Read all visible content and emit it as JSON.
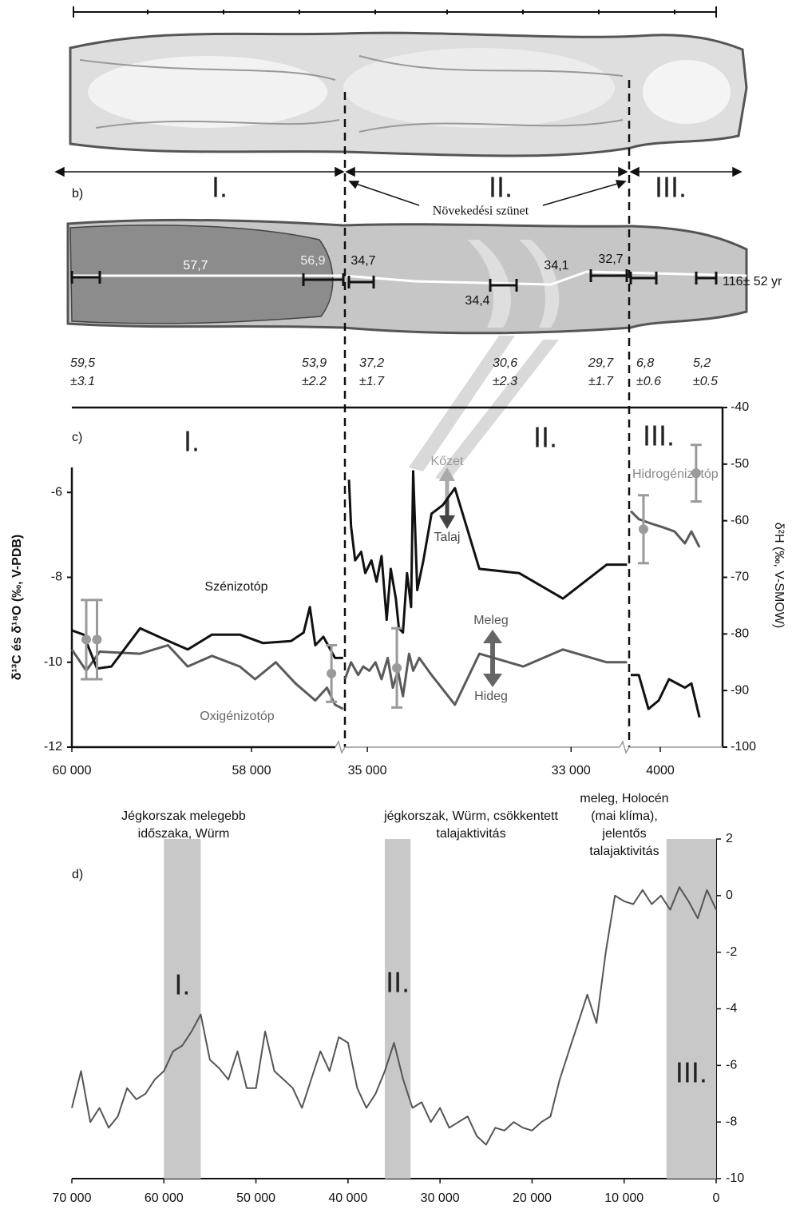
{
  "panel_a": {
    "zones": [
      "I.",
      "II.",
      "III."
    ]
  },
  "panel_b": {
    "label": "b)",
    "note": "Növekedési szünet",
    "samples": [
      "57,7",
      "56,9",
      "34,7",
      "34,1",
      "32,7",
      "34,4"
    ],
    "sample_note": "116± 52 yr",
    "ages": [
      {
        "age": "59,5",
        "error": "±3.1"
      },
      {
        "age": "53,9",
        "error": "±2.2"
      },
      {
        "age": "37,2",
        "error": "±1.7"
      },
      {
        "age": "30,6",
        "error": "±2.3"
      },
      {
        "age": "29,7",
        "error": "±1.7"
      },
      {
        "age": "6,8",
        "error": "±0.6"
      },
      {
        "age": "5,2",
        "error": "±0.5"
      }
    ]
  },
  "chart_data": [
    {
      "type": "line",
      "label": "c)",
      "ylabel": "δ¹³C és δ¹⁸O (‰, V-PDB)",
      "y2label": "δ²H (‰, V-SMOW)",
      "ylim": [
        -12,
        -4
      ],
      "yticks": [
        -12,
        -10,
        -8,
        -6
      ],
      "y2lim": [
        -100,
        -40
      ],
      "y2ticks": [
        -100,
        -90,
        -80,
        -70,
        -60,
        -50,
        -40
      ],
      "zones": [
        "I.",
        "II.",
        "III."
      ],
      "colors": {
        "carbon": "#111111",
        "oxygen": "#5a5a5a",
        "hydrogen": "#9a9a9a"
      },
      "annotations": {
        "carbon": "Szénizotóp",
        "oxygen": "Oxigénizotóp",
        "rock": "Kőzet",
        "soil": "Talaj",
        "warm": "Meleg",
        "cold": "Hideg",
        "hydrogen": "Hidrogénizotóp"
      },
      "descriptions": [
        [
          "Jégkorszak melegebb",
          "időszaka, Würm"
        ],
        [
          "jégkorszak, Würm, csökkentett",
          "talajaktivitás"
        ],
        [
          "meleg, Holocén",
          "(mai klíma),",
          "jelentős",
          "talajaktivitás"
        ]
      ],
      "segments": [
        {
          "xlim": [
            60000,
            56960
          ],
          "xticks": [
            {
              "value": 60000,
              "label": "60 000"
            },
            {
              "value": 58000,
              "label": "58 000"
            }
          ],
          "carbon": {
            "x": [
              60000,
              59870,
              59720,
              59560,
              59240,
              58980,
              58710,
              58440,
              58130,
              57870,
              57560,
              57420,
              57350,
              57290,
              57200,
              57070,
              56980
            ],
            "values": [
              -9.25,
              -9.35,
              -10.15,
              -10.1,
              -9.2,
              -9.45,
              -9.7,
              -9.35,
              -9.35,
              -9.55,
              -9.5,
              -9.3,
              -8.7,
              -9.6,
              -9.4,
              -9.9,
              -9.9
            ]
          },
          "oxygen": {
            "x": [
              60000,
              59840,
              59690,
              59240,
              58930,
              58710,
              58440,
              58130,
              57960,
              57730,
              57510,
              57290,
              57160,
              57070,
              56980
            ],
            "values": [
              -9.7,
              -10.2,
              -9.75,
              -9.8,
              -9.6,
              -10.1,
              -9.85,
              -10.1,
              -10.4,
              -10.0,
              -10.5,
              -10.9,
              -10.6,
              -11.0,
              -11.1
            ]
          },
          "hydrogen": {
            "axis": "y2",
            "x": [
              59840,
              59720,
              57110
            ],
            "values": [
              -81,
              -81,
              -87
            ],
            "errors": [
              7,
              7,
              5
            ]
          }
        },
        {
          "xlim": [
            35220,
            32430
          ],
          "xticks": [
            {
              "value": 35000,
              "label": "35 000"
            },
            {
              "value": 33000,
              "label": "33 000"
            }
          ],
          "carbon": {
            "x": [
              35180,
              35160,
              35120,
              35060,
              35020,
              34960,
              34910,
              34860,
              34810,
              34770,
              34720,
              34690,
              34650,
              34610,
              34570,
              34550,
              34510,
              34450,
              34370,
              34260,
              34140,
              33900,
              33510,
              33080,
              32650,
              32450
            ],
            "values": [
              -5.7,
              -6.8,
              -7.6,
              -7.4,
              -7.9,
              -7.6,
              -8.1,
              -7.5,
              -9.0,
              -7.8,
              -8.5,
              -9.2,
              -9.3,
              -7.9,
              -8.7,
              -5.5,
              -8.3,
              -7.6,
              -6.5,
              -6.3,
              -5.9,
              -7.8,
              -7.9,
              -8.5,
              -7.7,
              -7.7
            ]
          },
          "oxygen": {
            "x": [
              35220,
              35160,
              35090,
              35040,
              34980,
              34920,
              34860,
              34800,
              34750,
              34700,
              34650,
              34590,
              34550,
              34490,
              34370,
              34140,
              33900,
              33470,
              33080,
              32650,
              32450
            ],
            "values": [
              -10.4,
              -10.0,
              -10.3,
              -10.1,
              -10.2,
              -10.0,
              -10.4,
              -9.9,
              -10.6,
              -10.2,
              -10.8,
              -9.8,
              -10.2,
              -9.9,
              -10.3,
              -11.0,
              -9.8,
              -10.1,
              -9.7,
              -10.0,
              -10.0
            ]
          },
          "hydrogen": {
            "axis": "y2",
            "x": [
              34710
            ],
            "values": [
              -86
            ],
            "errors": [
              7
            ]
          }
        },
        {
          "xlim": [
            5000,
            2000
          ],
          "xticks": [
            4000
          ],
          "carbon": {
            "x": [
              4950,
              4690,
              4380,
              4050,
              3720,
              3210,
              3000,
              2740
            ],
            "values": [
              -10.3,
              -10.3,
              -11.1,
              -10.9,
              -10.4,
              -10.6,
              -10.5,
              -11.3
            ]
          },
          "oxygen": {
            "x": [
              4950,
              4690,
              4310,
              3920,
              3540,
              3210,
              3000,
              2740
            ],
            "values": [
              -6.44,
              -6.63,
              -6.73,
              -6.82,
              -6.92,
              -7.2,
              -6.92,
              -7.29
            ]
          },
          "hydrogen": {
            "axis": "y2",
            "x": [
              4540,
              2850
            ],
            "values": [
              -61.5,
              -51.6
            ],
            "errors": [
              6,
              5
            ]
          }
        }
      ]
    },
    {
      "type": "line",
      "label": "d)",
      "xlim": [
        70000,
        0
      ],
      "xticks": [
        {
          "value": 70000,
          "label": "70 000"
        },
        {
          "value": 60000,
          "label": "60 000"
        },
        {
          "value": 50000,
          "label": "50 000"
        },
        {
          "value": 40000,
          "label": "40 000"
        },
        {
          "value": 30000,
          "label": "30 000"
        },
        {
          "value": 20000,
          "label": "20 000"
        },
        {
          "value": 10000,
          "label": "10 000"
        },
        0
      ],
      "ylim": [
        -10,
        2
      ],
      "yticks": [
        -10,
        -8,
        -6,
        -4,
        -2,
        0,
        2
      ],
      "color": "#555555",
      "band_color": "#c8c8c8",
      "bands": [
        {
          "label": "I.",
          "x": [
            60000,
            56000
          ]
        },
        {
          "label": "II.",
          "x": [
            36000,
            33200
          ]
        },
        {
          "label": "III.",
          "x": [
            5400,
            0
          ]
        }
      ],
      "x": [
        70000,
        69000,
        68000,
        67000,
        66000,
        65000,
        64000,
        63000,
        62000,
        61000,
        60000,
        59000,
        58000,
        57000,
        56000,
        55000,
        54000,
        53000,
        52000,
        51000,
        50000,
        49000,
        48000,
        47000,
        46000,
        45000,
        44000,
        43000,
        42000,
        41000,
        40000,
        39000,
        38000,
        37000,
        36000,
        35000,
        34000,
        33000,
        32000,
        31000,
        30000,
        29000,
        28000,
        27000,
        26000,
        25000,
        24000,
        23000,
        22000,
        21000,
        20000,
        19000,
        18000,
        17000,
        16000,
        15000,
        14000,
        13000,
        12000,
        11000,
        10000,
        9000,
        8000,
        7000,
        6000,
        5000,
        4000,
        3000,
        2000,
        1000,
        0
      ],
      "values": [
        -7.5,
        -6.2,
        -8.0,
        -7.5,
        -8.2,
        -7.8,
        -6.8,
        -7.2,
        -7.0,
        -6.5,
        -6.2,
        -5.5,
        -5.3,
        -4.8,
        -4.2,
        -5.8,
        -6.1,
        -6.5,
        -5.5,
        -6.8,
        -6.8,
        -4.8,
        -6.2,
        -6.5,
        -6.8,
        -7.5,
        -6.5,
        -5.5,
        -6.2,
        -5.0,
        -5.2,
        -6.8,
        -7.5,
        -7.0,
        -6.2,
        -5.2,
        -6.5,
        -7.5,
        -7.3,
        -8.0,
        -7.5,
        -8.2,
        -8.0,
        -7.8,
        -8.5,
        -8.8,
        -8.2,
        -8.3,
        -8.0,
        -8.2,
        -8.3,
        -8.0,
        -7.8,
        -6.5,
        -5.5,
        -4.5,
        -3.5,
        -4.5,
        -2.0,
        0.0,
        -0.2,
        -0.3,
        0.2,
        -0.3,
        0.0,
        -0.5,
        0.3,
        -0.2,
        -0.8,
        0.2,
        -0.5
      ]
    }
  ]
}
